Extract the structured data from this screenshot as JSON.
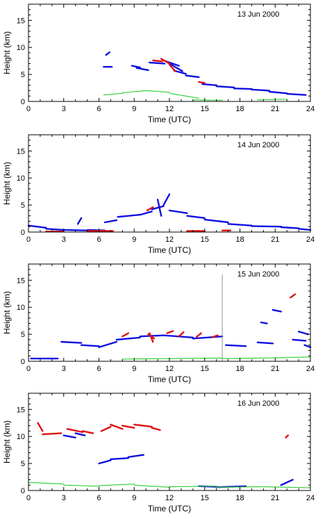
{
  "chart_data": [
    {
      "type": "scatter",
      "date": "13 Jun 2000",
      "xlabel": "Time (UTC)",
      "ylabel": "Height (km)",
      "xlim": [
        0,
        24
      ],
      "ylim": [
        0,
        18
      ],
      "xticks": [
        "0",
        "3",
        "6",
        "9",
        "12",
        "15",
        "18",
        "21",
        "24"
      ],
      "yticks": [
        "0",
        "5",
        "10",
        "15"
      ],
      "series": [
        {
          "color": "#1010e0",
          "segments": [
            [
              6.4,
              6.4,
              7.1,
              6.4
            ],
            [
              6.6,
              8.6,
              6.9,
              9.1
            ],
            [
              8.8,
              6.6,
              9.5,
              6.3
            ],
            [
              9.2,
              6.2,
              10.2,
              5.8
            ],
            [
              10.3,
              7.2,
              11.6,
              7.0
            ],
            [
              11.6,
              7.5,
              12.8,
              6.6
            ],
            [
              12.0,
              7.0,
              13.1,
              5.6
            ],
            [
              12.4,
              5.7,
              13.4,
              5.1
            ],
            [
              13.4,
              4.8,
              14.5,
              4.5
            ],
            [
              14.8,
              3.2,
              16.0,
              3.0
            ],
            [
              16.0,
              2.8,
              17.5,
              2.6
            ],
            [
              17.5,
              2.4,
              19.0,
              2.3
            ],
            [
              19.0,
              2.2,
              20.5,
              2.0
            ],
            [
              20.5,
              1.8,
              22.0,
              1.5
            ],
            [
              22.0,
              1.4,
              23.6,
              1.2
            ]
          ]
        },
        {
          "color": "#e01010",
          "segments": [
            [
              10.6,
              7.6,
              11.4,
              7.4
            ],
            [
              11.3,
              7.9,
              12.0,
              7.0
            ],
            [
              12.0,
              6.8,
              12.5,
              5.6
            ],
            [
              14.5,
              3.6,
              15.0,
              3.4
            ]
          ]
        },
        {
          "color": "#30d030",
          "segments": [
            [
              6.4,
              1.2,
              8.0,
              1.5
            ],
            [
              8.0,
              1.6,
              10.0,
              2.0
            ],
            [
              10.0,
              2.0,
              12.0,
              1.7
            ],
            [
              12.0,
              1.5,
              14.5,
              0.6
            ],
            [
              14.0,
              0.3,
              16.5,
              0.2
            ],
            [
              19.5,
              0.3,
              22.0,
              0.4
            ]
          ]
        }
      ]
    },
    {
      "type": "scatter",
      "date": "14 Jun 2000",
      "xlabel": "Time (UTC)",
      "ylabel": "Height (km)",
      "xlim": [
        0,
        24
      ],
      "ylim": [
        0,
        18
      ],
      "xticks": [
        "0",
        "3",
        "6",
        "9",
        "12",
        "15",
        "18",
        "21",
        "24"
      ],
      "yticks": [
        "0",
        "5",
        "10",
        "15"
      ],
      "series": [
        {
          "color": "#1010e0",
          "segments": [
            [
              0.0,
              1.2,
              1.5,
              0.8
            ],
            [
              1.5,
              0.6,
              3.0,
              0.4
            ],
            [
              3.0,
              0.4,
              5.0,
              0.3
            ],
            [
              4.2,
              1.5,
              4.5,
              2.6
            ],
            [
              5.0,
              0.4,
              6.5,
              0.3
            ],
            [
              6.5,
              1.8,
              7.5,
              2.2
            ],
            [
              7.6,
              2.8,
              9.5,
              3.2
            ],
            [
              9.5,
              3.2,
              10.5,
              3.8
            ],
            [
              10.5,
              4.2,
              11.5,
              4.8
            ],
            [
              11.5,
              5.0,
              12.0,
              7.0
            ],
            [
              11.0,
              6.0,
              11.3,
              3.0
            ],
            [
              12.0,
              4.0,
              13.5,
              3.5
            ],
            [
              13.5,
              3.0,
              15.0,
              2.6
            ],
            [
              15.0,
              2.3,
              17.0,
              1.8
            ],
            [
              17.0,
              1.5,
              19.0,
              1.2
            ],
            [
              19.0,
              1.1,
              21.5,
              1.0
            ],
            [
              21.5,
              0.9,
              23.0,
              0.7
            ],
            [
              23.0,
              0.6,
              24.0,
              0.4
            ]
          ]
        },
        {
          "color": "#e01010",
          "segments": [
            [
              1.5,
              0.1,
              3.0,
              0.1
            ],
            [
              5.0,
              0.2,
              7.2,
              0.2
            ],
            [
              10.1,
              4.0,
              10.6,
              4.6
            ],
            [
              13.5,
              0.2,
              15.0,
              0.2
            ],
            [
              16.5,
              0.3,
              17.2,
              0.3
            ]
          ]
        },
        {
          "color": "#30d030",
          "segments": []
        }
      ]
    },
    {
      "type": "scatter",
      "date": "15 Jun 2000",
      "xlabel": "Time (UTC)",
      "ylabel": "Height (km)",
      "xlim": [
        0,
        24
      ],
      "ylim": [
        0,
        18
      ],
      "xticks": [
        "0",
        "3",
        "6",
        "9",
        "12",
        "15",
        "18",
        "21",
        "24"
      ],
      "yticks": [
        "0",
        "5",
        "10",
        "15"
      ],
      "series": [
        {
          "color": "#1010e0",
          "segments": [
            [
              0.2,
              0.5,
              2.5,
              0.5
            ],
            [
              2.8,
              3.6,
              4.5,
              3.4
            ],
            [
              4.5,
              3.0,
              6.0,
              2.8
            ],
            [
              6.0,
              2.6,
              7.5,
              3.6
            ],
            [
              7.5,
              4.0,
              9.5,
              4.4
            ],
            [
              9.5,
              4.6,
              11.5,
              4.8
            ],
            [
              11.5,
              4.8,
              14.0,
              4.4
            ],
            [
              14.0,
              4.2,
              16.5,
              4.6
            ],
            [
              16.8,
              3.0,
              18.5,
              2.8
            ],
            [
              19.5,
              3.5,
              20.8,
              3.3
            ],
            [
              19.8,
              7.2,
              20.3,
              7.0
            ],
            [
              20.8,
              9.5,
              21.5,
              9.2
            ],
            [
              22.5,
              4.0,
              23.6,
              3.8
            ],
            [
              23.5,
              3.0,
              24.0,
              2.6
            ],
            [
              23.0,
              5.5,
              23.8,
              5.0
            ]
          ]
        },
        {
          "color": "#e01010",
          "segments": [
            [
              8.0,
              4.6,
              8.5,
              5.2
            ],
            [
              10.2,
              5.0,
              10.7,
              4.2
            ],
            [
              10.3,
              5.2,
              10.6,
              3.6
            ],
            [
              11.8,
              5.2,
              12.3,
              5.6
            ],
            [
              12.8,
              4.6,
              13.2,
              5.4
            ],
            [
              14.3,
              4.5,
              14.7,
              5.2
            ],
            [
              15.7,
              4.5,
              16.1,
              4.8
            ],
            [
              22.3,
              11.8,
              22.7,
              12.4
            ]
          ]
        },
        {
          "color": "#30d030",
          "segments": [
            [
              8.0,
              0.4,
              12.0,
              0.5
            ],
            [
              12.0,
              0.5,
              16.5,
              0.6
            ],
            [
              16.5,
              0.5,
              20.0,
              0.6
            ],
            [
              20.0,
              0.6,
              24.0,
              0.8
            ]
          ]
        },
        {
          "color": "#909090",
          "segments": [
            [
              16.5,
              0.0,
              16.5,
              16.0
            ]
          ]
        }
      ]
    },
    {
      "type": "scatter",
      "date": "16 Jun 2000",
      "xlabel": "Time (UTC)",
      "ylabel": "Height (km)",
      "xlim": [
        0,
        24
      ],
      "ylim": [
        0,
        18
      ],
      "xticks": [
        "0",
        "3",
        "6",
        "9",
        "12",
        "15",
        "18",
        "21",
        "24"
      ],
      "yticks": [
        "0",
        "5",
        "10",
        "15"
      ],
      "series": [
        {
          "color": "#1010e0",
          "segments": [
            [
              3.0,
              10.2,
              4.0,
              9.8
            ],
            [
              4.0,
              10.6,
              4.8,
              10.2
            ],
            [
              6.0,
              5.0,
              7.0,
              5.6
            ],
            [
              7.0,
              5.8,
              8.5,
              6.0
            ],
            [
              8.5,
              6.2,
              9.8,
              6.6
            ],
            [
              14.5,
              0.8,
              16.0,
              0.7
            ],
            [
              16.0,
              0.6,
              18.5,
              0.8
            ],
            [
              21.5,
              1.0,
              22.5,
              2.0
            ]
          ]
        },
        {
          "color": "#e01010",
          "segments": [
            [
              0.8,
              12.5,
              1.2,
              11.0
            ],
            [
              1.2,
              10.4,
              2.8,
              10.6
            ],
            [
              3.3,
              11.4,
              4.6,
              10.8
            ],
            [
              4.6,
              11.0,
              5.5,
              10.6
            ],
            [
              6.2,
              11.0,
              7.0,
              11.8
            ],
            [
              7.0,
              12.2,
              8.0,
              11.4
            ],
            [
              8.0,
              12.0,
              9.0,
              11.6
            ],
            [
              9.0,
              12.2,
              10.5,
              11.8
            ],
            [
              10.5,
              11.6,
              11.2,
              11.2
            ],
            [
              21.9,
              9.8,
              22.1,
              10.2
            ]
          ]
        },
        {
          "color": "#30d030",
          "segments": [
            [
              0.0,
              1.5,
              3.0,
              1.2
            ],
            [
              3.0,
              1.0,
              6.0,
              0.8
            ],
            [
              6.0,
              0.9,
              9.0,
              1.2
            ],
            [
              9.0,
              1.0,
              12.0,
              0.6
            ],
            [
              12.0,
              0.7,
              16.0,
              0.8
            ],
            [
              16.0,
              0.6,
              20.0,
              0.7
            ],
            [
              20.0,
              0.7,
              24.0,
              0.5
            ]
          ]
        }
      ]
    }
  ]
}
